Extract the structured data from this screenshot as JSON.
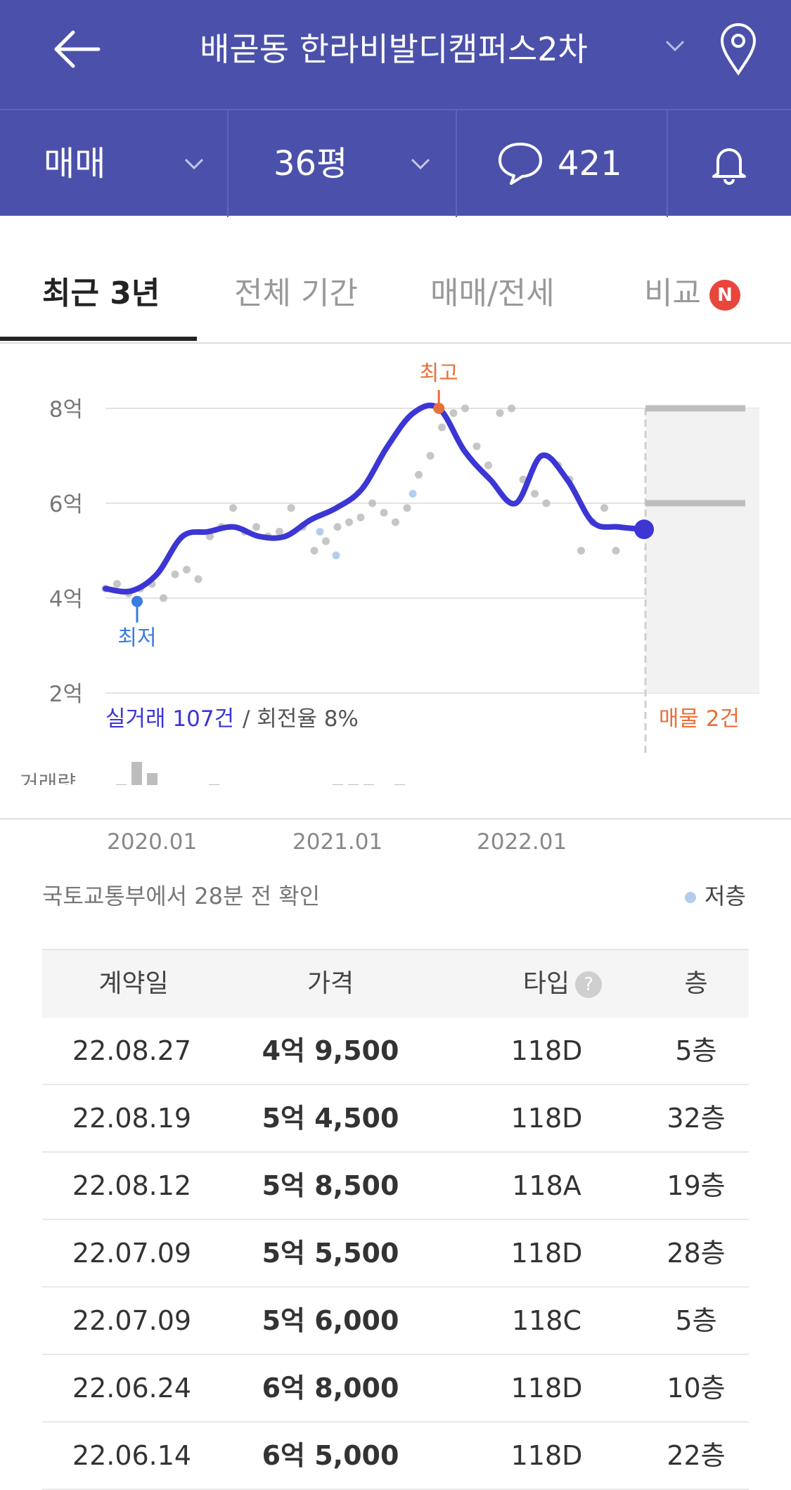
{
  "header": {
    "title": "배곧동 한라비발디캠퍼스2차",
    "icons": [
      "back-arrow-icon",
      "chevron-down-icon",
      "map-pin-icon"
    ]
  },
  "filters": {
    "trade_type": "매매",
    "size": "36평",
    "comment_count": "421",
    "icons": [
      "chevron-down-icon",
      "speech-bubble-icon",
      "bell-icon"
    ]
  },
  "tabs": [
    {
      "label": "최근 3년",
      "active": true
    },
    {
      "label": "전체 기간",
      "active": false
    },
    {
      "label": "매매/전세",
      "active": false
    },
    {
      "label": "비교",
      "active": false,
      "badge": "N"
    }
  ],
  "chart_data": {
    "type": "line",
    "y_ticks": [
      "8억",
      "6억",
      "4억",
      "2억"
    ],
    "ylim": [
      2,
      8.5
    ],
    "x_ticks": [
      "2020.01",
      "2021.01",
      "2022.01"
    ],
    "high_label": "최고",
    "low_label": "최저",
    "trade_summary_count": "실거래 107건",
    "trade_summary_rate": "/ 회전율 8%",
    "listing_label": "매물 2건",
    "volume_label": "거래량",
    "trend_series": {
      "x": [
        "2019-08",
        "2019-10",
        "2019-12",
        "2020-01",
        "2020-03",
        "2020-05",
        "2020-07",
        "2020-09",
        "2020-11",
        "2021-01",
        "2021-02",
        "2021-04",
        "2021-06",
        "2021-07",
        "2021-08",
        "2021-10",
        "2021-12",
        "2022-01",
        "2022-03",
        "2022-05",
        "2022-07",
        "2022-09"
      ],
      "values": [
        4.2,
        4.15,
        4.5,
        5.3,
        5.4,
        5.5,
        5.3,
        5.3,
        5.65,
        5.9,
        6.3,
        7.2,
        7.9,
        8.0,
        7.1,
        6.5,
        6.0,
        7.0,
        6.5,
        5.6,
        5.5,
        5.45
      ]
    },
    "transactions_scatter": {
      "values": [
        4.2,
        4.3,
        4.1,
        4.2,
        4.3,
        4.0,
        4.5,
        4.6,
        4.4,
        5.3,
        5.5,
        5.9,
        5.4,
        5.5,
        5.3,
        5.4,
        5.9,
        5.5,
        5.0,
        5.2,
        5.5,
        5.6,
        5.7,
        6.0,
        5.8,
        5.6,
        5.9,
        6.6,
        7.0,
        7.6,
        7.9,
        8.0,
        7.2,
        6.8,
        7.9,
        8.0,
        6.5,
        6.2,
        6.0,
        6.8,
        6.5,
        5.0,
        5.6,
        5.9,
        5.0
      ]
    },
    "low_floor_points": [
      5.4,
      4.9,
      6.2
    ],
    "listings": [
      8.0,
      6.0
    ],
    "volume": [
      1,
      3,
      5,
      4,
      1,
      1,
      1,
      3,
      0,
      1,
      0,
      0,
      0,
      2,
      2,
      3,
      3,
      3,
      2,
      3,
      1,
      1,
      0,
      1,
      0,
      1,
      0,
      1,
      0,
      1,
      1,
      1,
      2,
      1,
      2
    ]
  },
  "source_text": "국토교통부에서 28분 전 확인",
  "legend_low_floor": "저층",
  "table": {
    "headers": [
      "계약일",
      "가격",
      "타입",
      "층"
    ],
    "help_glyph": "?",
    "rows": [
      {
        "date": "22.08.27",
        "price": "4억 9,500",
        "type": "118D",
        "floor": "5층"
      },
      {
        "date": "22.08.19",
        "price": "5억 4,500",
        "type": "118D",
        "floor": "32층"
      },
      {
        "date": "22.08.12",
        "price": "5억 8,500",
        "type": "118A",
        "floor": "19층"
      },
      {
        "date": "22.07.09",
        "price": "5억 5,500",
        "type": "118D",
        "floor": "28층"
      },
      {
        "date": "22.07.09",
        "price": "5억 6,000",
        "type": "118C",
        "floor": "5층"
      },
      {
        "date": "22.06.24",
        "price": "6억 8,000",
        "type": "118D",
        "floor": "10층"
      },
      {
        "date": "22.06.14",
        "price": "6억 5,000",
        "type": "118D",
        "floor": "22층"
      }
    ]
  },
  "colors": {
    "header_bg": "#4b51aa",
    "trend_line": "#3b36d4",
    "high_marker": "#e8703a",
    "low_marker": "#3a7be0",
    "low_floor_dot": "#b3cdee"
  }
}
